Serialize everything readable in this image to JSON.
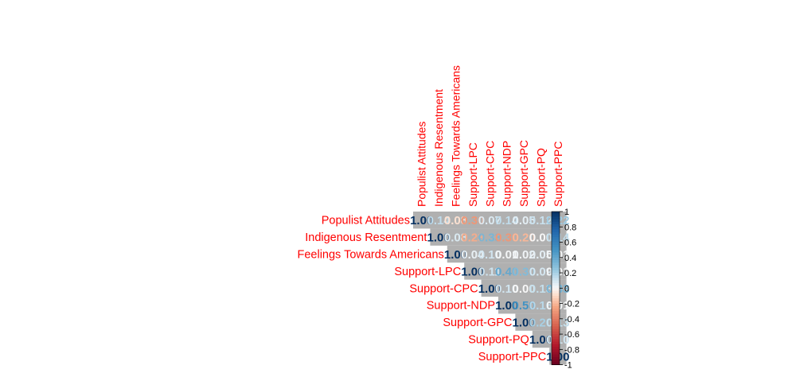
{
  "chart_data": {
    "type": "heatmap",
    "variables": [
      "Populist Attitudes",
      "Indigenous Resentment",
      "Feelings Towards Americans",
      "Support-LPC",
      "Support-CPC",
      "Support-NDP",
      "Support-GPC",
      "Support-PQ",
      "Support-PPC"
    ],
    "matrix": [
      [
        1.0,
        0.14,
        -0.08,
        -0.3,
        0.07,
        0.14,
        0.05,
        0.12,
        0.22
      ],
      [
        0.14,
        1.0,
        0.08,
        -0.23,
        0.33,
        -0.3,
        -0.2,
        0.0,
        0.14
      ],
      [
        -0.08,
        0.08,
        1.0,
        0.04,
        0.1,
        0.01,
        0.02,
        0.05,
        0.01
      ],
      [
        -0.3,
        -0.23,
        0.04,
        1.0,
        0.11,
        0.4,
        0.3,
        0.09,
        0.01
      ],
      [
        0.07,
        0.33,
        0.1,
        0.11,
        1.0,
        0.1,
        0.0,
        0.13,
        0.33
      ],
      [
        0.14,
        -0.3,
        0.01,
        0.4,
        0.1,
        1.0,
        0.5,
        0.16,
        0.01
      ],
      [
        0.05,
        -0.2,
        0.02,
        0.3,
        0.0,
        0.5,
        1.0,
        0.2,
        0.13
      ],
      [
        0.12,
        0.0,
        0.05,
        0.09,
        0.13,
        0.16,
        0.2,
        1.0,
        0.1
      ],
      [
        0.22,
        0.14,
        0.01,
        0.01,
        0.33,
        0.01,
        0.13,
        0.1,
        1.0
      ]
    ],
    "colorbar_ticks": [
      1,
      0.8,
      0.6,
      0.4,
      0.2,
      0,
      -0.2,
      -0.4,
      -0.6,
      -0.8,
      -1
    ],
    "colorbar_range": [
      -1,
      1
    ],
    "display": "upper-triangle",
    "label_color": "#ff0000"
  }
}
